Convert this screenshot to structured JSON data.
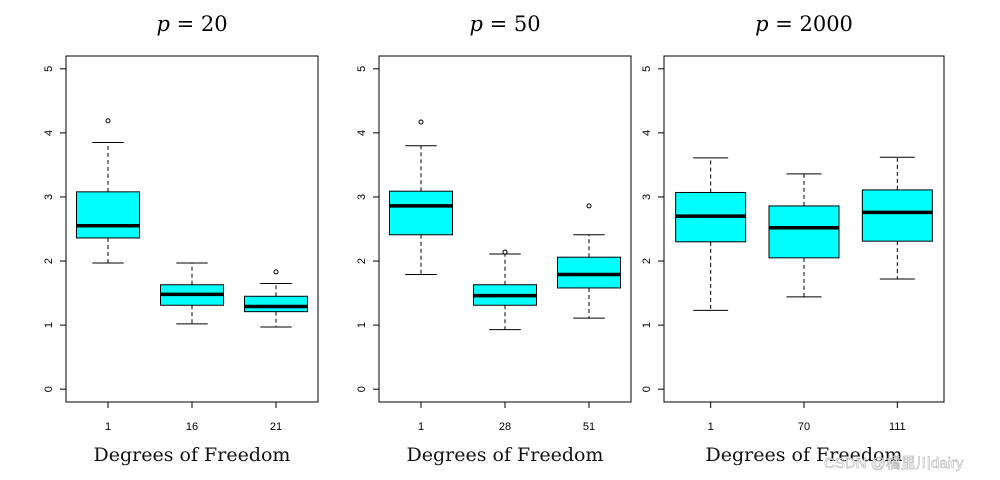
{
  "chart_data": [
    {
      "type": "box",
      "title": "p = 20",
      "title_var": "p",
      "title_value": "20",
      "xlabel": "Degrees of Freedom",
      "ylabel": "",
      "ylim": [
        -0.2,
        5.2
      ],
      "yticks": [
        0,
        1,
        2,
        3,
        4,
        5
      ],
      "grid": false,
      "box_color": "#00FFFF",
      "categories": [
        "1",
        "16",
        "21"
      ],
      "boxes": [
        {
          "min": 1.97,
          "q1": 2.36,
          "median": 2.55,
          "q3": 3.08,
          "max": 3.85,
          "outliers": [
            4.19
          ]
        },
        {
          "min": 1.02,
          "q1": 1.31,
          "median": 1.48,
          "q3": 1.63,
          "max": 1.97,
          "outliers": []
        },
        {
          "min": 0.97,
          "q1": 1.21,
          "median": 1.29,
          "q3": 1.45,
          "max": 1.65,
          "outliers": [
            1.83
          ]
        }
      ]
    },
    {
      "type": "box",
      "title": "p = 50",
      "title_var": "p",
      "title_value": "50",
      "xlabel": "Degrees of Freedom",
      "ylabel": "",
      "ylim": [
        -0.2,
        5.2
      ],
      "yticks": [
        0,
        1,
        2,
        3,
        4,
        5
      ],
      "grid": false,
      "box_color": "#00FFFF",
      "categories": [
        "1",
        "28",
        "51"
      ],
      "boxes": [
        {
          "min": 1.79,
          "q1": 2.41,
          "median": 2.86,
          "q3": 3.09,
          "max": 3.8,
          "outliers": [
            4.17
          ]
        },
        {
          "min": 0.93,
          "q1": 1.31,
          "median": 1.46,
          "q3": 1.63,
          "max": 2.11,
          "outliers": [
            2.14
          ]
        },
        {
          "min": 1.11,
          "q1": 1.58,
          "median": 1.79,
          "q3": 2.06,
          "max": 2.41,
          "outliers": [
            2.86
          ]
        }
      ]
    },
    {
      "type": "box",
      "title": "p = 2000",
      "title_var": "p",
      "title_value": "2000",
      "xlabel": "Degrees of Freedom",
      "ylabel": "",
      "ylim": [
        -0.2,
        5.2
      ],
      "yticks": [
        0,
        1,
        2,
        3,
        4,
        5
      ],
      "grid": false,
      "box_color": "#00FFFF",
      "categories": [
        "1",
        "70",
        "111"
      ],
      "boxes": [
        {
          "min": 1.23,
          "q1": 2.3,
          "median": 2.7,
          "q3": 3.07,
          "max": 3.61,
          "outliers": []
        },
        {
          "min": 1.44,
          "q1": 2.05,
          "median": 2.52,
          "q3": 2.86,
          "max": 3.36,
          "outliers": []
        },
        {
          "min": 1.72,
          "q1": 2.31,
          "median": 2.76,
          "q3": 3.11,
          "max": 3.62,
          "outliers": []
        }
      ]
    }
  ],
  "watermark": "CSDN @橘里川dairy"
}
